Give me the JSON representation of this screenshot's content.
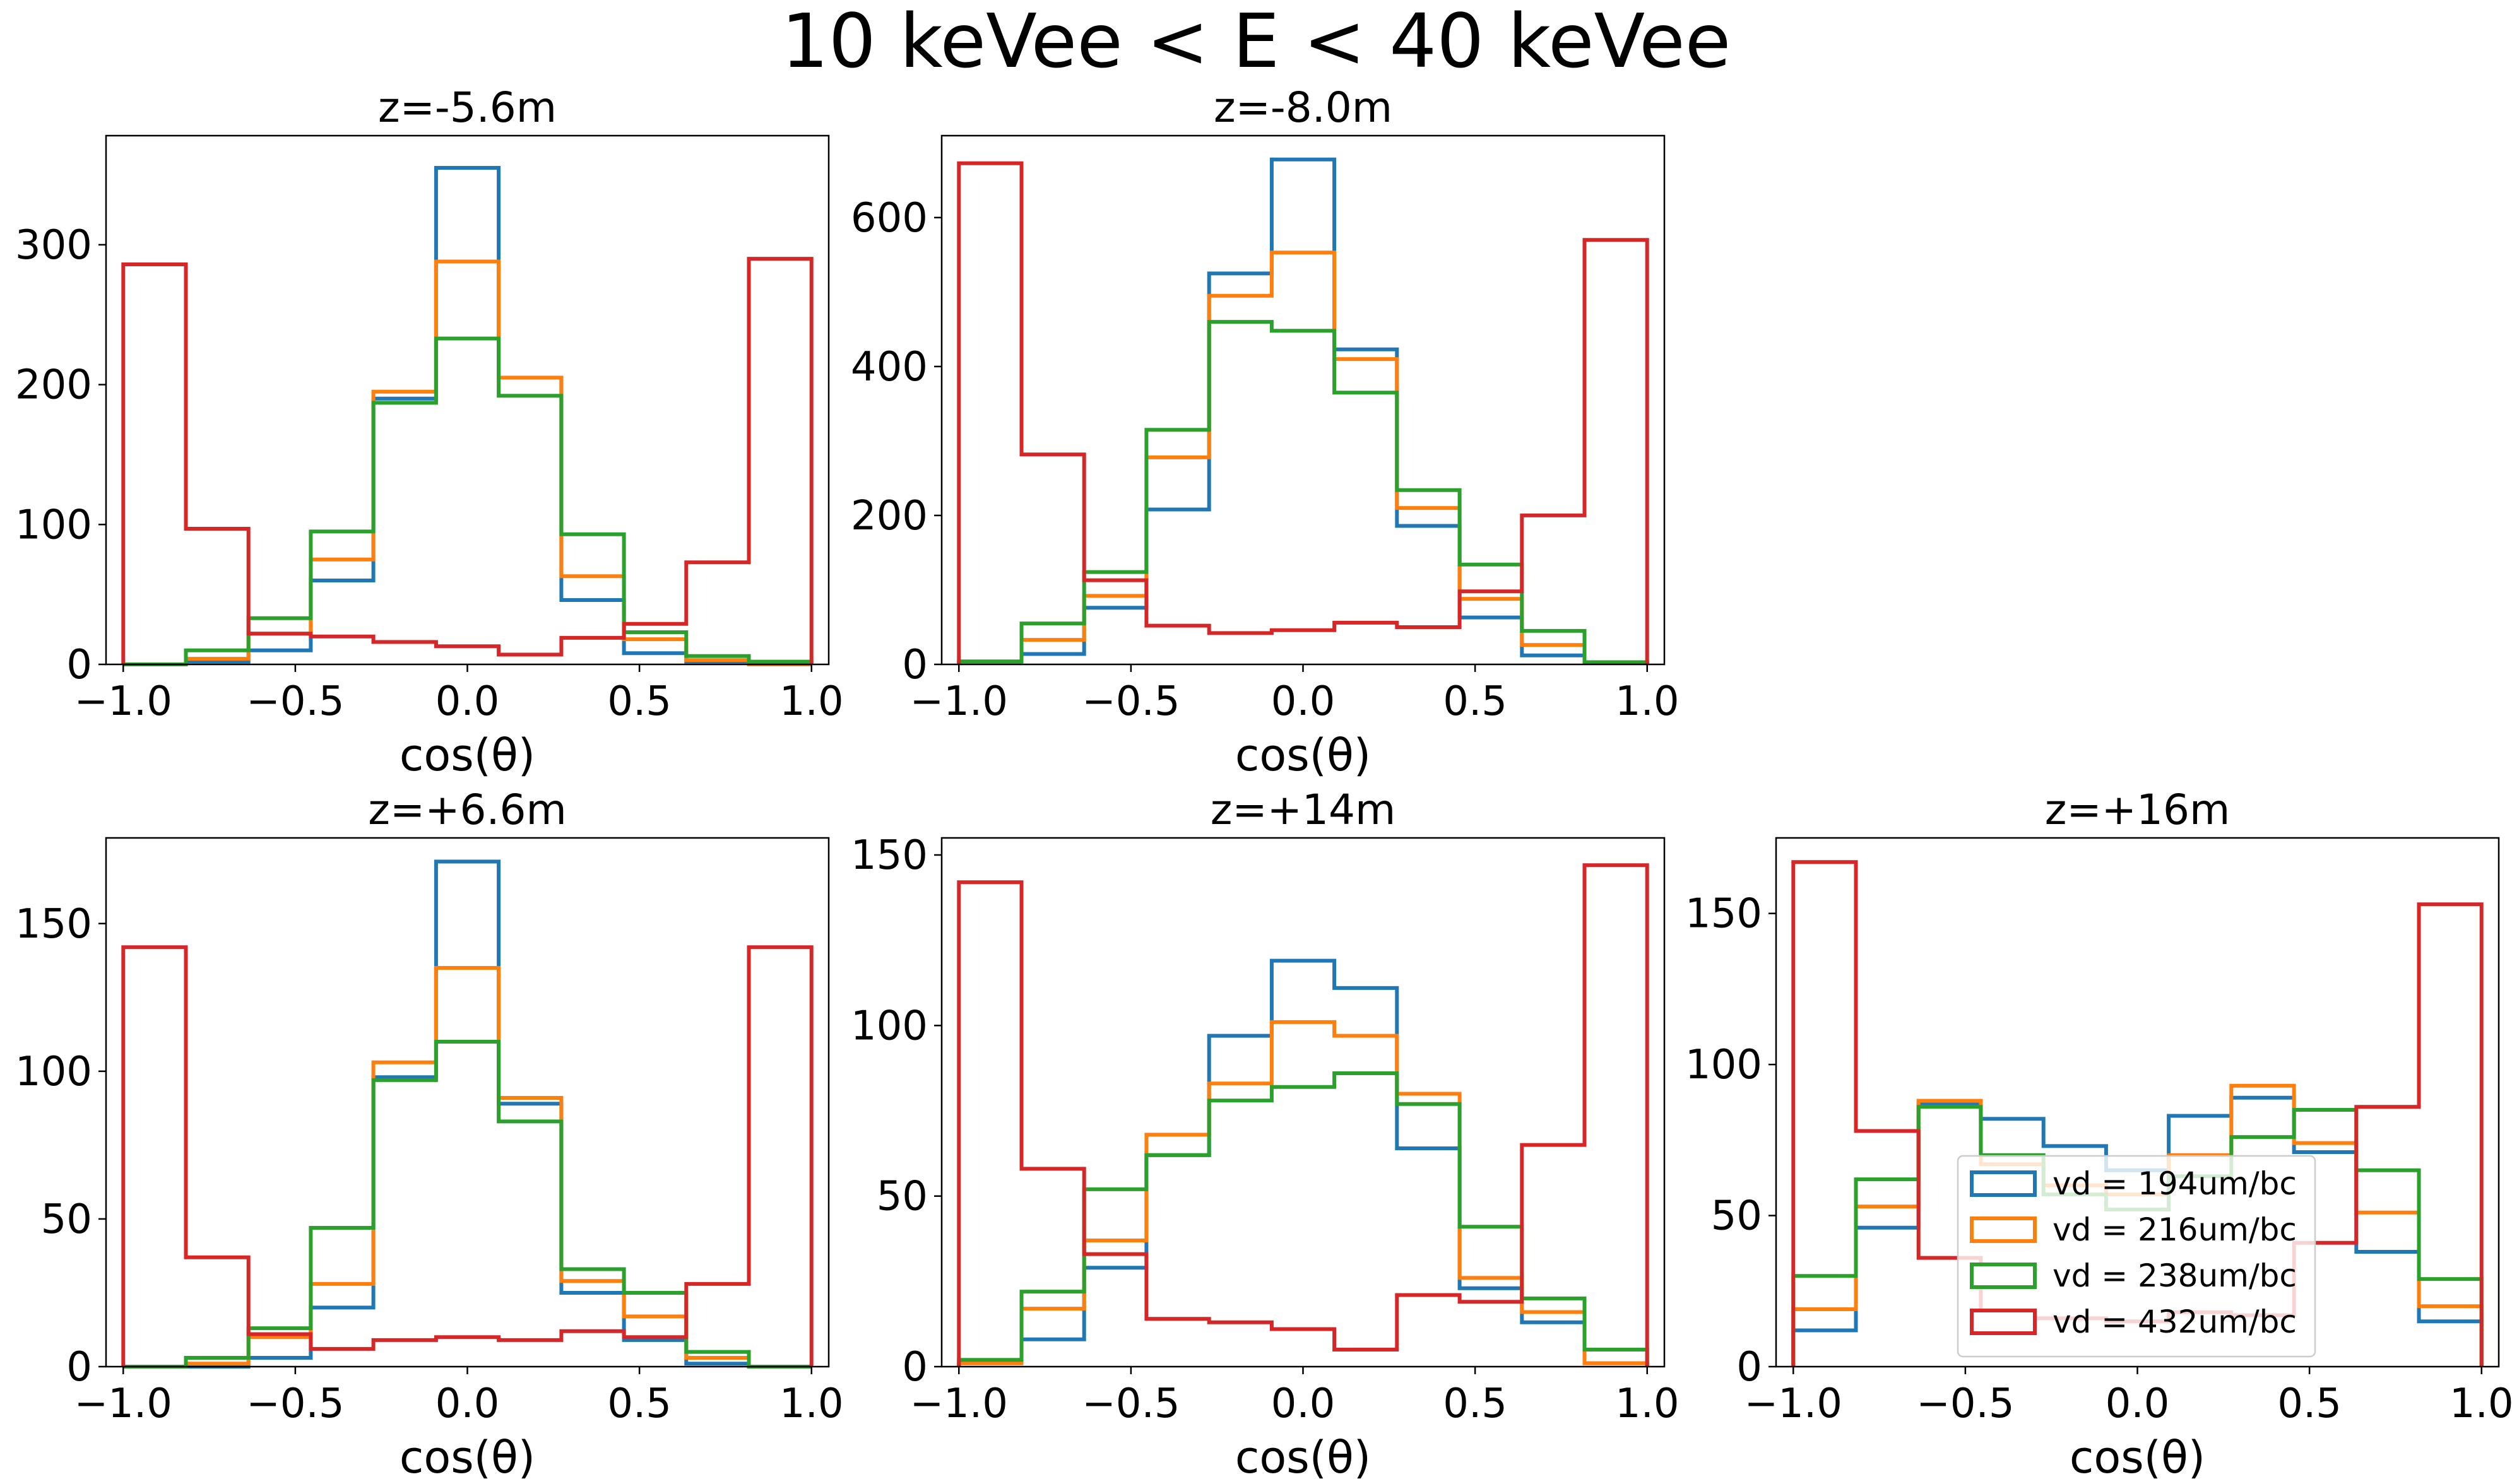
{
  "figure": {
    "suptitle": "10 keVee < E < 40 keVee"
  },
  "legend": {
    "entries": [
      "vd = 194um/bc",
      "vd = 216um/bc",
      "vd = 238um/bc",
      "vd = 432um/bc"
    ],
    "colors": [
      "#1f77b4",
      "#ff7f0e",
      "#2ca02c",
      "#d62728"
    ],
    "placement": "lower-center, inside z=+16m panel"
  },
  "chart_data": [
    {
      "type": "histogram-step",
      "title": "z=-5.6m",
      "xlabel": "cos(θ)",
      "xlim": [
        -1.05,
        1.05
      ],
      "ylim": [
        0,
        378
      ],
      "xticks": [
        -1.0,
        -0.5,
        0.0,
        0.5,
        1.0
      ],
      "xtick_labels": [
        "−1.0",
        "−0.5",
        "0.0",
        "0.5",
        "1.0"
      ],
      "yticks": [
        0,
        100,
        200,
        300
      ],
      "ytick_labels": [
        "0",
        "100",
        "200",
        "300"
      ],
      "bin_edges": [
        -1.0,
        -0.818,
        -0.636,
        -0.455,
        -0.273,
        -0.091,
        0.091,
        0.273,
        0.455,
        0.636,
        0.818,
        1.0
      ],
      "series": [
        {
          "color": "#1f77b4",
          "values": [
            0,
            2,
            10,
            60,
            190,
            355,
            205,
            46,
            8,
            2,
            0
          ]
        },
        {
          "color": "#ff7f0e",
          "values": [
            0,
            4,
            22,
            75,
            195,
            288,
            205,
            63,
            18,
            3,
            0
          ]
        },
        {
          "color": "#2ca02c",
          "values": [
            0,
            10,
            33,
            95,
            187,
            233,
            192,
            93,
            23,
            6,
            2
          ]
        },
        {
          "color": "#d62728",
          "values": [
            286,
            97,
            22,
            20,
            16,
            13,
            7,
            19,
            29,
            73,
            290
          ]
        }
      ]
    },
    {
      "type": "histogram-step",
      "title": "z=-8.0m",
      "xlabel": "cos(θ)",
      "xlim": [
        -1.05,
        1.05
      ],
      "ylim": [
        0,
        710
      ],
      "xticks": [
        -1.0,
        -0.5,
        0.0,
        0.5,
        1.0
      ],
      "xtick_labels": [
        "−1.0",
        "−0.5",
        "0.0",
        "0.5",
        "1.0"
      ],
      "yticks": [
        0,
        200,
        400,
        600
      ],
      "ytick_labels": [
        "0",
        "200",
        "400",
        "600"
      ],
      "bin_edges": [
        -1.0,
        -0.818,
        -0.636,
        -0.455,
        -0.273,
        -0.091,
        0.091,
        0.273,
        0.455,
        0.636,
        0.818,
        1.0
      ],
      "series": [
        {
          "color": "#1f77b4",
          "values": [
            2,
            14,
            76,
            208,
            525,
            678,
            423,
            186,
            63,
            12,
            2
          ]
        },
        {
          "color": "#ff7f0e",
          "values": [
            2,
            33,
            92,
            278,
            495,
            553,
            410,
            210,
            88,
            26,
            2
          ]
        },
        {
          "color": "#2ca02c",
          "values": [
            4,
            55,
            124,
            315,
            460,
            448,
            365,
            234,
            134,
            45,
            3
          ]
        },
        {
          "color": "#d62728",
          "values": [
            673,
            282,
            113,
            52,
            42,
            46,
            56,
            50,
            98,
            200,
            570
          ]
        }
      ]
    },
    {
      "type": "histogram-step",
      "title": "z=+6.6m",
      "xlabel": "cos(θ)",
      "xlim": [
        -1.05,
        1.05
      ],
      "ylim": [
        0,
        179
      ],
      "xticks": [
        -1.0,
        -0.5,
        0.0,
        0.5,
        1.0
      ],
      "xtick_labels": [
        "−1.0",
        "−0.5",
        "0.0",
        "0.5",
        "1.0"
      ],
      "yticks": [
        0,
        50,
        100,
        150
      ],
      "ytick_labels": [
        "0",
        "50",
        "100",
        "150"
      ],
      "bin_edges": [
        -1.0,
        -0.818,
        -0.636,
        -0.455,
        -0.273,
        -0.091,
        0.091,
        0.273,
        0.455,
        0.636,
        0.818,
        1.0
      ],
      "series": [
        {
          "color": "#1f77b4",
          "values": [
            0,
            0,
            3,
            20,
            98,
            171,
            89,
            25,
            9,
            1,
            0
          ]
        },
        {
          "color": "#ff7f0e",
          "values": [
            0,
            1,
            10,
            28,
            103,
            135,
            91,
            29,
            17,
            3,
            0
          ]
        },
        {
          "color": "#2ca02c",
          "values": [
            0,
            3,
            13,
            47,
            97,
            110,
            83,
            33,
            25,
            5,
            0
          ]
        },
        {
          "color": "#d62728",
          "values": [
            142,
            37,
            11,
            6,
            9,
            10,
            9,
            12,
            10,
            28,
            142
          ]
        }
      ]
    },
    {
      "type": "histogram-step",
      "title": "z=+14m",
      "xlabel": "cos(θ)",
      "xlim": [
        -1.05,
        1.05
      ],
      "ylim": [
        0,
        155
      ],
      "xticks": [
        -1.0,
        -0.5,
        0.0,
        0.5,
        1.0
      ],
      "xtick_labels": [
        "−1.0",
        "−0.5",
        "0.0",
        "0.5",
        "1.0"
      ],
      "yticks": [
        0,
        50,
        100,
        150
      ],
      "ytick_labels": [
        "0",
        "50",
        "100",
        "150"
      ],
      "bin_edges": [
        -1.0,
        -0.818,
        -0.636,
        -0.455,
        -0.273,
        -0.091,
        0.091,
        0.273,
        0.455,
        0.636,
        0.818,
        1.0
      ],
      "series": [
        {
          "color": "#1f77b4",
          "values": [
            1,
            8,
            29,
            62,
            97,
            119,
            111,
            64,
            23,
            13,
            1
          ]
        },
        {
          "color": "#ff7f0e",
          "values": [
            1,
            17,
            37,
            68,
            83,
            101,
            97,
            80,
            26,
            16,
            1
          ]
        },
        {
          "color": "#2ca02c",
          "values": [
            2,
            22,
            52,
            62,
            78,
            82,
            86,
            77,
            41,
            20,
            5
          ]
        },
        {
          "color": "#d62728",
          "values": [
            142,
            58,
            33,
            14,
            13,
            11,
            5,
            21,
            19,
            65,
            147
          ]
        }
      ]
    },
    {
      "type": "histogram-step",
      "title": "z=+16m",
      "xlabel": "cos(θ)",
      "xlim": [
        -1.05,
        1.05
      ],
      "ylim": [
        0,
        175
      ],
      "xticks": [
        -1.0,
        -0.5,
        0.0,
        0.5,
        1.0
      ],
      "xtick_labels": [
        "−1.0",
        "−0.5",
        "0.0",
        "0.5",
        "1.0"
      ],
      "yticks": [
        0,
        50,
        100,
        150
      ],
      "ytick_labels": [
        "0",
        "50",
        "100",
        "150"
      ],
      "bin_edges": [
        -1.0,
        -0.818,
        -0.636,
        -0.455,
        -0.273,
        -0.091,
        0.091,
        0.273,
        0.455,
        0.636,
        0.818,
        1.0
      ],
      "series": [
        {
          "color": "#1f77b4",
          "values": [
            12,
            46,
            87,
            82,
            73,
            65,
            83,
            89,
            71,
            38,
            15
          ]
        },
        {
          "color": "#ff7f0e",
          "values": [
            19,
            53,
            88,
            67,
            60,
            57,
            70,
            93,
            74,
            51,
            20
          ]
        },
        {
          "color": "#2ca02c",
          "values": [
            30,
            62,
            86,
            70,
            57,
            52,
            63,
            76,
            85,
            65,
            29
          ]
        },
        {
          "color": "#d62728",
          "values": [
            167,
            78,
            36,
            16,
            16,
            15,
            18,
            17,
            41,
            86,
            153
          ]
        }
      ]
    }
  ]
}
